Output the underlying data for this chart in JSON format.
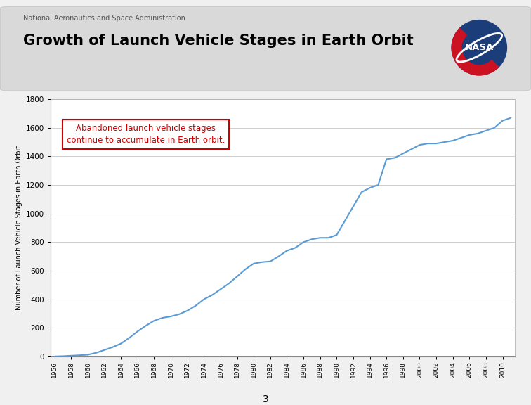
{
  "title": "Growth of Launch Vehicle Stages in Earth Orbit",
  "subtitle": "National Aeronautics and Space Administration",
  "ylabel": "Number of Launch Vehicle Stages in Earth Orbit",
  "annotation_text": "Abandoned launch vehicle stages\ncontinue to accumulate in Earth orbit.",
  "ylim": [
    0,
    1800
  ],
  "yticks": [
    0,
    200,
    400,
    600,
    800,
    1000,
    1200,
    1400,
    1600,
    1800
  ],
  "line_color": "#5b9bd5",
  "outer_bg": "#f0f0f0",
  "header_bg": "#e0e0e0",
  "plot_bg": "#ffffff",
  "footer_color": "#3a5dae",
  "page_number": "3",
  "years": [
    1956,
    1957,
    1958,
    1959,
    1960,
    1961,
    1962,
    1963,
    1964,
    1965,
    1966,
    1967,
    1968,
    1969,
    1970,
    1971,
    1972,
    1973,
    1974,
    1975,
    1976,
    1977,
    1978,
    1979,
    1980,
    1981,
    1982,
    1983,
    1984,
    1985,
    1986,
    1987,
    1988,
    1989,
    1990,
    1991,
    1992,
    1993,
    1994,
    1995,
    1996,
    1997,
    1998,
    1999,
    2000,
    2001,
    2002,
    2003,
    2004,
    2005,
    2006,
    2007,
    2008,
    2009,
    2010,
    2011
  ],
  "values": [
    0,
    2,
    5,
    8,
    12,
    25,
    45,
    65,
    90,
    130,
    175,
    215,
    250,
    270,
    280,
    295,
    320,
    355,
    400,
    430,
    470,
    510,
    560,
    610,
    650,
    660,
    665,
    700,
    740,
    760,
    800,
    820,
    830,
    830,
    850,
    950,
    1050,
    1150,
    1180,
    1200,
    1380,
    1390,
    1420,
    1450,
    1480,
    1490,
    1490,
    1500,
    1510,
    1530,
    1550,
    1560,
    1580,
    1600,
    1650,
    1670
  ],
  "xticks": [
    1956,
    1958,
    1960,
    1962,
    1964,
    1966,
    1968,
    1970,
    1972,
    1974,
    1976,
    1978,
    1980,
    1982,
    1984,
    1986,
    1988,
    1990,
    1992,
    1994,
    1996,
    1998,
    2000,
    2002,
    2004,
    2006,
    2008,
    2010
  ]
}
